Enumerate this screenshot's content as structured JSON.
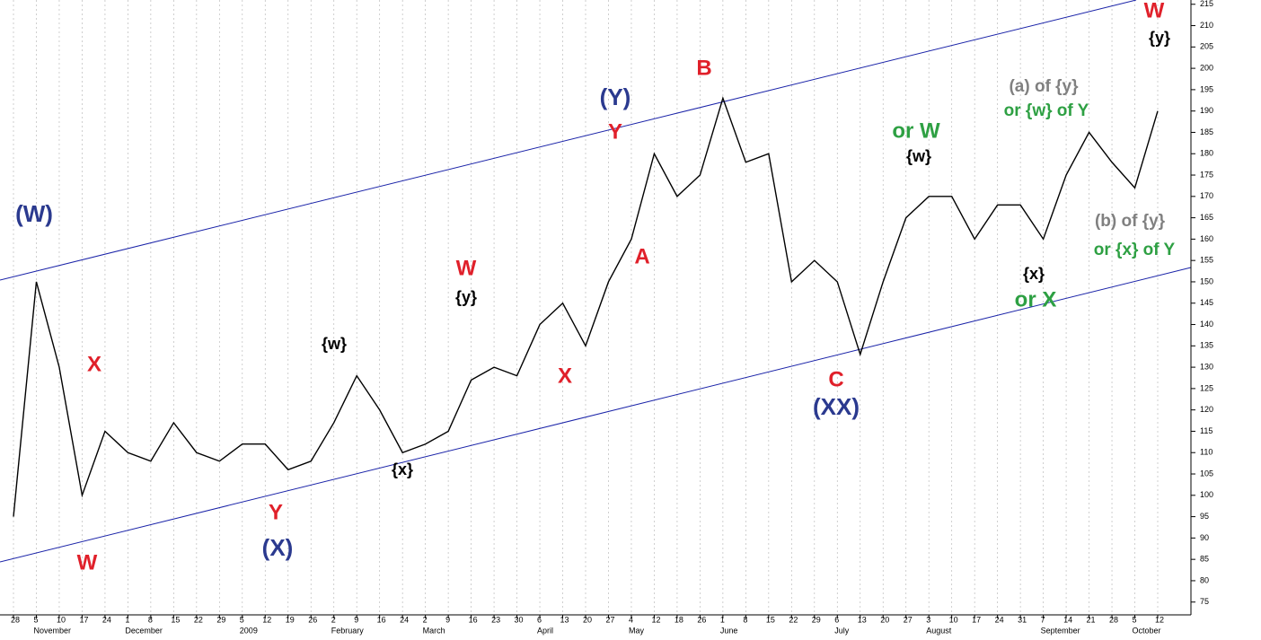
{
  "chart_data": {
    "type": "line",
    "categories": [
      "28",
      "5",
      "10",
      "17",
      "24",
      "1",
      "8",
      "15",
      "22",
      "29",
      "5",
      "12",
      "19",
      "26",
      "2",
      "9",
      "16",
      "24",
      "2",
      "9",
      "16",
      "23",
      "30",
      "6",
      "13",
      "20",
      "27",
      "4",
      "12",
      "18",
      "26",
      "1",
      "8",
      "15",
      "22",
      "29",
      "6",
      "13",
      "20",
      "27",
      "3",
      "10",
      "17",
      "24",
      "31",
      "7",
      "14",
      "21",
      "28",
      "5",
      "12"
    ],
    "month_labels": [
      null,
      "November",
      null,
      null,
      null,
      "December",
      null,
      null,
      null,
      null,
      "2009",
      null,
      null,
      null,
      "February",
      null,
      null,
      null,
      "March",
      null,
      null,
      null,
      null,
      "April",
      null,
      null,
      null,
      "May",
      null,
      null,
      null,
      "June",
      null,
      null,
      null,
      null,
      "July",
      null,
      null,
      null,
      "August",
      null,
      null,
      null,
      null,
      "September",
      null,
      null,
      null,
      "October",
      null
    ],
    "series": [
      {
        "color": "#000000",
        "values": [
          95,
          150,
          130,
          100,
          115,
          110,
          108,
          117,
          110,
          108,
          112,
          112,
          106,
          108,
          117,
          128,
          120,
          110,
          112,
          115,
          127,
          130,
          128,
          140,
          145,
          135,
          150,
          160,
          180,
          170,
          175,
          193,
          178,
          180,
          150,
          155,
          150,
          133,
          150,
          165,
          170,
          170,
          160,
          168,
          168,
          160,
          175,
          185,
          178,
          172,
          190
        ]
      }
    ],
    "ylim": [
      72,
      216
    ],
    "yticks": [
      75,
      80,
      85,
      90,
      95,
      100,
      105,
      110,
      115,
      120,
      125,
      130,
      135,
      140,
      145,
      150,
      155,
      160,
      165,
      170,
      175,
      180,
      185,
      190,
      195,
      200,
      205,
      210,
      215
    ],
    "grid": true,
    "annotations": [
      {
        "text": "(W)",
        "color": "#2b3a8f"
      },
      {
        "text": "W",
        "color": "#e0202a"
      },
      {
        "text": "X",
        "color": "#e0202a"
      },
      {
        "text": "Y",
        "color": "#e0202a"
      },
      {
        "text": "(X)",
        "color": "#2b3a8f"
      },
      {
        "text": "{w}",
        "color": "#000000"
      },
      {
        "text": "{x}",
        "color": "#000000"
      },
      {
        "text": "W",
        "color": "#e0202a"
      },
      {
        "text": "{y}",
        "color": "#000000"
      },
      {
        "text": "X",
        "color": "#e0202a"
      },
      {
        "text": "(Y)",
        "color": "#2b3a8f"
      },
      {
        "text": "Y",
        "color": "#e0202a"
      },
      {
        "text": "A",
        "color": "#e0202a"
      },
      {
        "text": "B",
        "color": "#e0202a"
      },
      {
        "text": "C",
        "color": "#e0202a"
      },
      {
        "text": "(XX)",
        "color": "#2b3a8f"
      },
      {
        "text": "or W",
        "color": "#2ea043"
      },
      {
        "text": "{w}",
        "color": "#000000"
      },
      {
        "text": "(a) of {y}",
        "color": "#808080"
      },
      {
        "text": "or {w} of Y",
        "color": "#2ea043"
      },
      {
        "text": "{x}",
        "color": "#000000"
      },
      {
        "text": "or X",
        "color": "#2ea043"
      },
      {
        "text": "(b) of {y}",
        "color": "#808080"
      },
      {
        "text": "or {x} of Y",
        "color": "#2ea043"
      },
      {
        "text": "W",
        "color": "#e0202a"
      },
      {
        "text": "{y}",
        "color": "#000000"
      }
    ]
  }
}
